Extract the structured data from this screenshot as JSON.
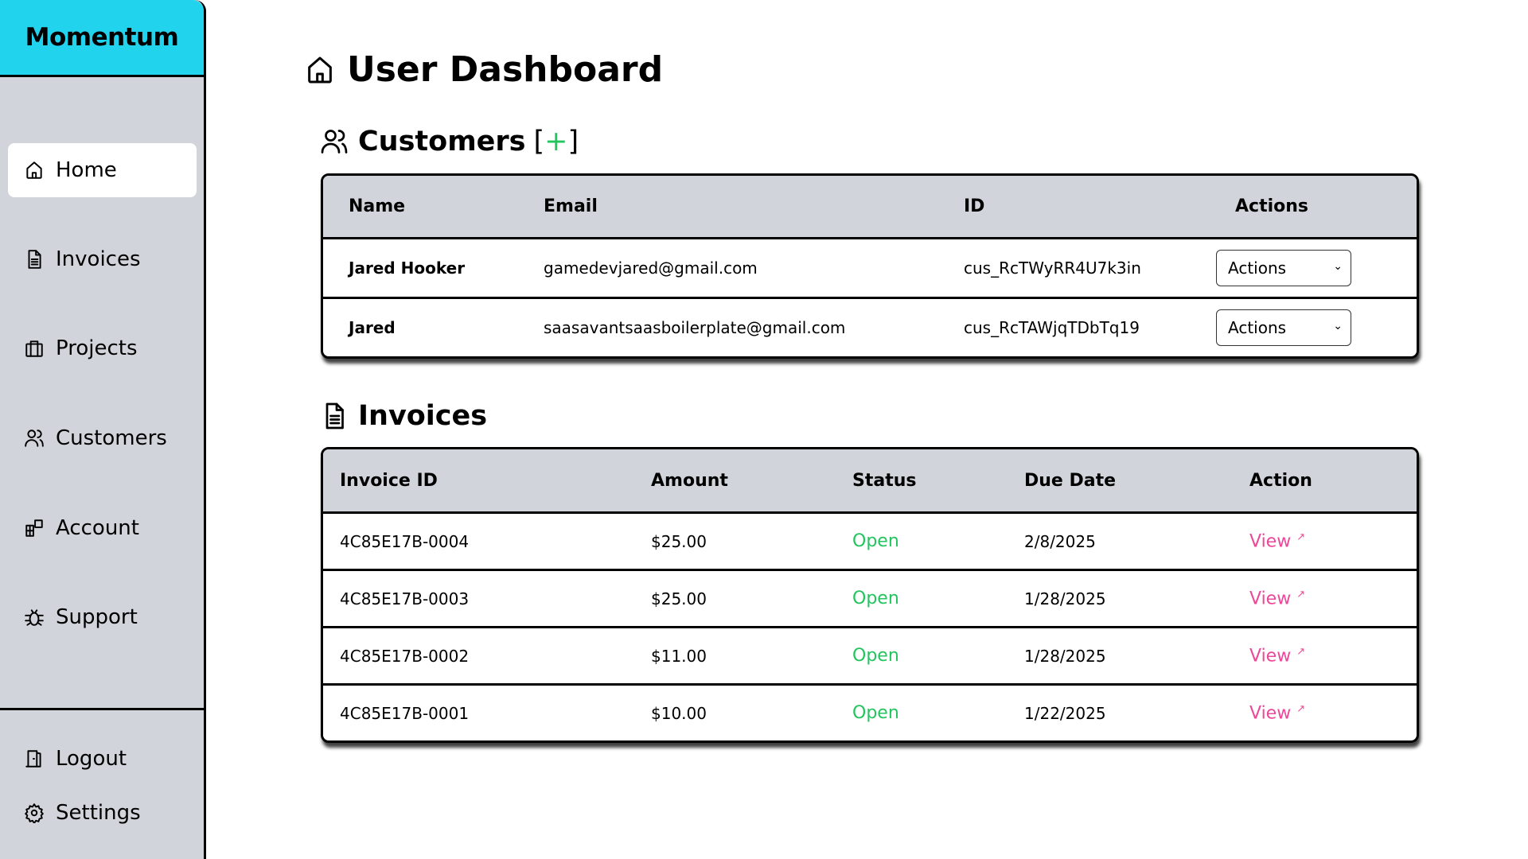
{
  "brand": {
    "name": "Momentum",
    "accent": "#22d3ee"
  },
  "sidebar": {
    "items": [
      {
        "label": "Home",
        "icon": "home-icon",
        "active": true
      },
      {
        "label": "Invoices",
        "icon": "file-text-icon"
      },
      {
        "label": "Projects",
        "icon": "briefcase-icon"
      },
      {
        "label": "Customers",
        "icon": "users-icon"
      },
      {
        "label": "Account",
        "icon": "account-icon"
      },
      {
        "label": "Support",
        "icon": "bug-icon"
      }
    ],
    "bottom": [
      {
        "label": "Logout",
        "icon": "door-icon"
      },
      {
        "label": "Settings",
        "icon": "gear-icon"
      }
    ]
  },
  "page": {
    "title": "User Dashboard"
  },
  "customers": {
    "heading": "Customers",
    "add_open": "[",
    "add_symbol": "+",
    "add_close": "]",
    "columns": [
      "Name",
      "Email",
      "ID",
      "Actions"
    ],
    "rows": [
      {
        "name": "Jared Hooker",
        "email": "gamedevjared@gmail.com",
        "id": "cus_RcTWyRR4U7k3in",
        "action": "Actions"
      },
      {
        "name": "Jared",
        "email": "saasavantsaasboilerplate@gmail.com",
        "id": "cus_RcTAWjqTDbTq19",
        "action": "Actions"
      }
    ]
  },
  "invoices": {
    "heading": "Invoices",
    "columns": [
      "Invoice ID",
      "Amount",
      "Status",
      "Due Date",
      "Action"
    ],
    "rows": [
      {
        "id": "4C85E17B-0004",
        "amount": "$25.00",
        "status": "Open",
        "due": "2/8/2025",
        "action": "View"
      },
      {
        "id": "4C85E17B-0003",
        "amount": "$25.00",
        "status": "Open",
        "due": "1/28/2025",
        "action": "View"
      },
      {
        "id": "4C85E17B-0002",
        "amount": "$11.00",
        "status": "Open",
        "due": "1/28/2025",
        "action": "View"
      },
      {
        "id": "4C85E17B-0001",
        "amount": "$10.00",
        "status": "Open",
        "due": "1/22/2025",
        "action": "View"
      }
    ]
  },
  "colors": {
    "status_open": "#22c55e",
    "link": "#ec4899",
    "table_header": "#d1d5db"
  }
}
